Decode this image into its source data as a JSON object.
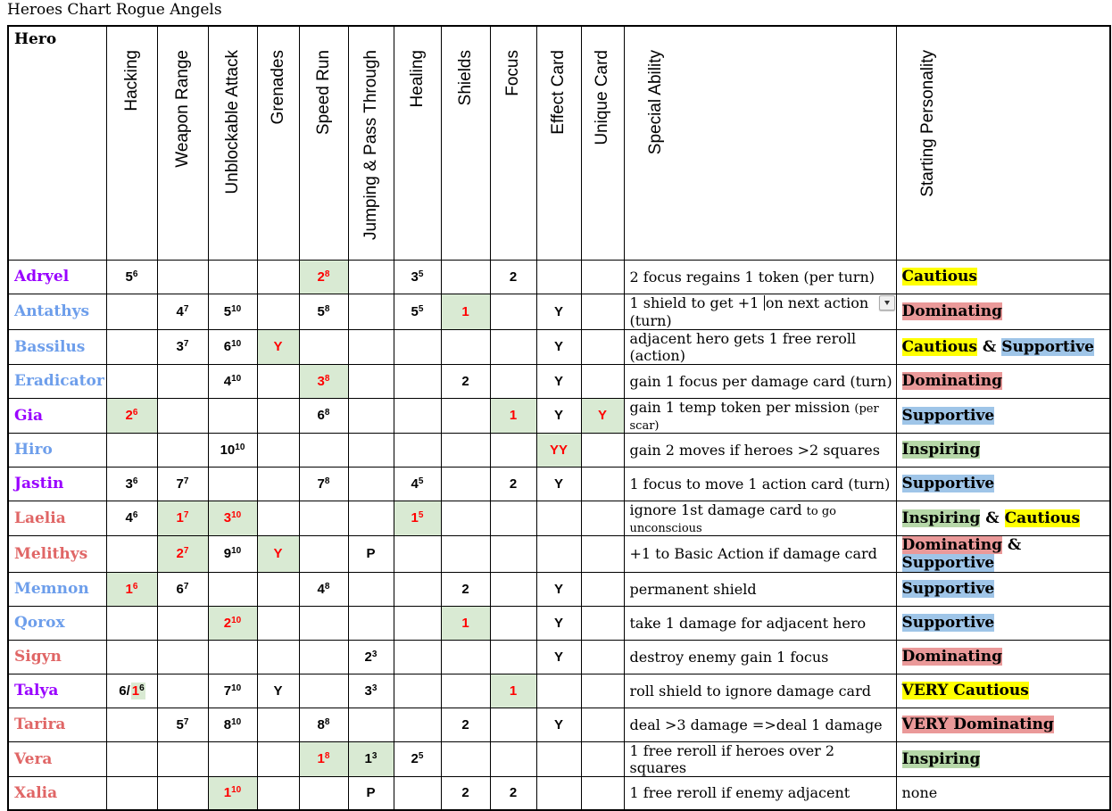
{
  "title": "Heroes Chart Rogue Angels",
  "colors": {
    "cell_highlight": "#d9ead3",
    "value_red": "#ff0000",
    "name_purple": "#9900ff",
    "name_blue": "#6d9eeb",
    "name_salmon": "#e06666",
    "hl_yellow": "#ffff00",
    "hl_pink": "#ea9999",
    "hl_blue": "#9fc5e8",
    "hl_green": "#b6d7a8"
  },
  "table": {
    "hero_header": "Hero",
    "stat_columns": [
      {
        "key": "hacking",
        "label": "Hacking"
      },
      {
        "key": "weapon-range",
        "label": "Weapon Range"
      },
      {
        "key": "unblockable-attack",
        "label": "Unblockable Attack"
      },
      {
        "key": "grenades",
        "label": "Grenades"
      },
      {
        "key": "speed-run",
        "label": "Speed Run"
      },
      {
        "key": "jumping-pass-through",
        "label": "Jumping & Pass Through"
      },
      {
        "key": "healing",
        "label": "Healing"
      },
      {
        "key": "shields",
        "label": "Shields"
      },
      {
        "key": "focus",
        "label": "Focus"
      },
      {
        "key": "effect-card",
        "label": "Effect Card"
      },
      {
        "key": "unique-card",
        "label": "Unique Card"
      }
    ],
    "ability_header": "Special Ability",
    "personality_header": "Starting Personality",
    "rows": [
      {
        "name": "Adryel",
        "color": "purple",
        "stats": {
          "hacking": {
            "segs": [
              {
                "v": "5",
                "sup": "6"
              }
            ]
          },
          "speed-run": {
            "bg": true,
            "segs": [
              {
                "v": "2",
                "sup": "8",
                "red": true
              }
            ]
          },
          "healing": {
            "segs": [
              {
                "v": "3",
                "sup": "5"
              }
            ]
          },
          "focus": {
            "segs": [
              {
                "v": "2"
              }
            ]
          }
        },
        "ability": [
          {
            "t": "2 focus regains 1 token (per turn)"
          }
        ],
        "personality": [
          {
            "t": "Cautious",
            "h": "yellow"
          }
        ]
      },
      {
        "name": "Antathys",
        "color": "blue",
        "stats": {
          "weapon-range": {
            "segs": [
              {
                "v": "4",
                "sup": "7"
              }
            ]
          },
          "unblockable-attack": {
            "segs": [
              {
                "v": "5",
                "sup": "10"
              }
            ]
          },
          "speed-run": {
            "segs": [
              {
                "v": "5",
                "sup": "8"
              }
            ]
          },
          "healing": {
            "segs": [
              {
                "v": "5",
                "sup": "5"
              }
            ]
          },
          "shields": {
            "bg": true,
            "segs": [
              {
                "v": "1",
                "red": true
              }
            ]
          },
          "effect-card": {
            "segs": [
              {
                "v": "Y"
              }
            ]
          }
        },
        "ability": [
          {
            "t": "1 shield to get +1 "
          },
          {
            "caret": true
          },
          {
            "t": "on next action (turn)"
          }
        ],
        "dropdown": true,
        "personality": [
          {
            "t": "Dominating",
            "h": "pink"
          }
        ]
      },
      {
        "name": "Bassilus",
        "color": "blue",
        "stats": {
          "weapon-range": {
            "segs": [
              {
                "v": "3",
                "sup": "7"
              }
            ]
          },
          "unblockable-attack": {
            "segs": [
              {
                "v": "6",
                "sup": "10"
              }
            ]
          },
          "grenades": {
            "bg": true,
            "segs": [
              {
                "v": "Y",
                "red": true
              }
            ]
          },
          "effect-card": {
            "segs": [
              {
                "v": "Y"
              }
            ]
          }
        },
        "ability": [
          {
            "t": "adjacent hero gets 1 free reroll (action)"
          }
        ],
        "personality": [
          {
            "t": "Cautious",
            "h": "yellow"
          },
          {
            "t": " & "
          },
          {
            "t": "Supportive",
            "h": "blue"
          }
        ]
      },
      {
        "name": "Eradicator",
        "color": "blue",
        "stats": {
          "unblockable-attack": {
            "segs": [
              {
                "v": "4",
                "sup": "10"
              }
            ]
          },
          "speed-run": {
            "bg": true,
            "segs": [
              {
                "v": "3",
                "sup": "8",
                "red": true
              }
            ]
          },
          "shields": {
            "segs": [
              {
                "v": "2"
              }
            ]
          },
          "effect-card": {
            "segs": [
              {
                "v": "Y"
              }
            ]
          }
        },
        "ability": [
          {
            "t": "gain 1 focus per damage card (turn)"
          }
        ],
        "personality": [
          {
            "t": "Dominating",
            "h": "pink"
          }
        ]
      },
      {
        "name": "Gia",
        "color": "purple",
        "stats": {
          "hacking": {
            "bg": true,
            "segs": [
              {
                "v": "2",
                "sup": "6",
                "red": true
              }
            ]
          },
          "speed-run": {
            "segs": [
              {
                "v": "6",
                "sup": "8"
              }
            ]
          },
          "focus": {
            "bg": true,
            "segs": [
              {
                "v": "1",
                "red": true
              }
            ]
          },
          "effect-card": {
            "segs": [
              {
                "v": "Y"
              }
            ]
          },
          "unique-card": {
            "bg": true,
            "segs": [
              {
                "v": "Y",
                "red": true
              }
            ]
          }
        },
        "ability": [
          {
            "t": "gain 1 temp token per mission "
          },
          {
            "t": "(per scar)",
            "small": true
          }
        ],
        "personality": [
          {
            "t": "Supportive",
            "h": "blue"
          }
        ]
      },
      {
        "name": "Hiro",
        "color": "blue",
        "stats": {
          "unblockable-attack": {
            "segs": [
              {
                "v": "10",
                "sup": "10"
              }
            ]
          },
          "effect-card": {
            "bg": true,
            "segs": [
              {
                "v": "YY",
                "red": true
              }
            ]
          }
        },
        "ability": [
          {
            "t": "gain 2 moves if heroes >2 squares"
          }
        ],
        "personality": [
          {
            "t": "Inspiring",
            "h": "green"
          }
        ]
      },
      {
        "name": "Jastin",
        "color": "purple",
        "stats": {
          "hacking": {
            "segs": [
              {
                "v": "3",
                "sup": "6"
              }
            ]
          },
          "weapon-range": {
            "segs": [
              {
                "v": "7",
                "sup": "7"
              }
            ]
          },
          "speed-run": {
            "segs": [
              {
                "v": "7",
                "sup": "8"
              }
            ]
          },
          "healing": {
            "segs": [
              {
                "v": "4",
                "sup": "5"
              }
            ]
          },
          "focus": {
            "segs": [
              {
                "v": "2"
              }
            ]
          },
          "effect-card": {
            "segs": [
              {
                "v": "Y"
              }
            ]
          }
        },
        "ability": [
          {
            "t": "1 focus to move 1 action card (turn)"
          }
        ],
        "personality": [
          {
            "t": "Supportive",
            "h": "blue"
          }
        ]
      },
      {
        "name": "Laelia",
        "color": "salmon",
        "stats": {
          "hacking": {
            "segs": [
              {
                "v": "4",
                "sup": "6"
              }
            ]
          },
          "weapon-range": {
            "bg": true,
            "segs": [
              {
                "v": "1",
                "sup": "7",
                "red": true
              }
            ]
          },
          "unblockable-attack": {
            "bg": true,
            "segs": [
              {
                "v": "3",
                "sup": "10",
                "red": true
              }
            ]
          },
          "healing": {
            "bg": true,
            "segs": [
              {
                "v": "1",
                "sup": "5",
                "red": true
              }
            ]
          }
        },
        "ability": [
          {
            "t": "ignore 1st damage card "
          },
          {
            "t": "to go unconscious",
            "small": true
          }
        ],
        "personality": [
          {
            "t": "Inspiring",
            "h": "green"
          },
          {
            "t": " & "
          },
          {
            "t": "Cautious",
            "h": "yellow"
          }
        ]
      },
      {
        "name": "Melithys",
        "color": "salmon",
        "stats": {
          "weapon-range": {
            "bg": true,
            "segs": [
              {
                "v": "2",
                "sup": "7",
                "red": true
              }
            ]
          },
          "unblockable-attack": {
            "segs": [
              {
                "v": "9",
                "sup": "10"
              }
            ]
          },
          "grenades": {
            "bg": true,
            "segs": [
              {
                "v": "Y",
                "red": true
              }
            ]
          },
          "jumping-pass-through": {
            "segs": [
              {
                "v": "P"
              }
            ]
          }
        },
        "ability": [
          {
            "t": "+1 to Basic Action if damage card"
          }
        ],
        "personality": [
          {
            "t": "Dominating",
            "h": "pink"
          },
          {
            "t": " & "
          },
          {
            "t": "Supportive",
            "h": "blue"
          }
        ]
      },
      {
        "name": "Memnon",
        "color": "blue",
        "stats": {
          "hacking": {
            "bg": true,
            "segs": [
              {
                "v": "1",
                "sup": "6",
                "red": true
              }
            ]
          },
          "weapon-range": {
            "segs": [
              {
                "v": "6",
                "sup": "7"
              }
            ]
          },
          "speed-run": {
            "segs": [
              {
                "v": "4",
                "sup": "8"
              }
            ]
          },
          "shields": {
            "segs": [
              {
                "v": "2"
              }
            ]
          },
          "effect-card": {
            "segs": [
              {
                "v": "Y"
              }
            ]
          }
        },
        "ability": [
          {
            "t": "permanent shield"
          }
        ],
        "personality": [
          {
            "t": "Supportive",
            "h": "blue"
          }
        ]
      },
      {
        "name": "Qorox",
        "color": "blue",
        "stats": {
          "unblockable-attack": {
            "bg": true,
            "segs": [
              {
                "v": "2",
                "sup": "10",
                "red": true
              }
            ]
          },
          "shields": {
            "bg": true,
            "segs": [
              {
                "v": "1",
                "red": true
              }
            ]
          },
          "effect-card": {
            "segs": [
              {
                "v": "Y"
              }
            ]
          }
        },
        "ability": [
          {
            "t": "take 1 damage for adjacent hero"
          }
        ],
        "personality": [
          {
            "t": "Supportive",
            "h": "blue"
          }
        ]
      },
      {
        "name": "Sigyn",
        "color": "salmon",
        "stats": {
          "jumping-pass-through": {
            "segs": [
              {
                "v": "2",
                "sup": "3"
              }
            ]
          },
          "effect-card": {
            "segs": [
              {
                "v": "Y"
              }
            ]
          }
        },
        "ability": [
          {
            "t": "destroy enemy gain 1 focus"
          }
        ],
        "personality": [
          {
            "t": "Dominating",
            "h": "pink"
          }
        ]
      },
      {
        "name": "Talya",
        "color": "purple",
        "stats": {
          "hacking": {
            "segs": [
              {
                "v": "6/"
              },
              {
                "v": "1",
                "sup": "6",
                "red": true,
                "hl": true,
                "sup_red": false
              }
            ]
          },
          "unblockable-attack": {
            "segs": [
              {
                "v": "7",
                "sup": "10"
              }
            ]
          },
          "grenades": {
            "segs": [
              {
                "v": "Y"
              }
            ]
          },
          "jumping-pass-through": {
            "segs": [
              {
                "v": "3",
                "sup": "3"
              }
            ]
          },
          "focus": {
            "bg": true,
            "segs": [
              {
                "v": "1",
                "red": true
              }
            ]
          }
        },
        "ability": [
          {
            "t": "roll shield to ignore damage card"
          }
        ],
        "personality": [
          {
            "t": "VERY Cautious",
            "h": "yellow"
          }
        ]
      },
      {
        "name": "Tarira",
        "color": "salmon",
        "stats": {
          "weapon-range": {
            "segs": [
              {
                "v": "5",
                "sup": "7"
              }
            ]
          },
          "unblockable-attack": {
            "segs": [
              {
                "v": "8",
                "sup": "10"
              }
            ]
          },
          "speed-run": {
            "segs": [
              {
                "v": "8",
                "sup": "8"
              }
            ]
          },
          "shields": {
            "segs": [
              {
                "v": "2"
              }
            ]
          },
          "effect-card": {
            "segs": [
              {
                "v": "Y"
              }
            ]
          }
        },
        "ability": [
          {
            "t": "deal >3 damage =>deal 1 damage"
          }
        ],
        "personality": [
          {
            "t": "VERY Dominating",
            "h": "pink"
          }
        ]
      },
      {
        "name": "Vera",
        "color": "salmon",
        "stats": {
          "speed-run": {
            "bg": true,
            "segs": [
              {
                "v": "1",
                "sup": "8",
                "red": true
              }
            ]
          },
          "jumping-pass-through": {
            "bg": true,
            "segs": [
              {
                "v": "1",
                "sup": "3"
              }
            ]
          },
          "healing": {
            "segs": [
              {
                "v": "2",
                "sup": "5"
              }
            ]
          }
        },
        "ability": [
          {
            "t": "1 free reroll if heroes over 2 squares"
          }
        ],
        "personality": [
          {
            "t": "Inspiring",
            "h": "green"
          }
        ]
      },
      {
        "name": "Xalia",
        "color": "salmon",
        "stats": {
          "unblockable-attack": {
            "bg": true,
            "segs": [
              {
                "v": "1",
                "sup": "10",
                "red": true
              }
            ]
          },
          "jumping-pass-through": {
            "segs": [
              {
                "v": "P"
              }
            ]
          },
          "shields": {
            "segs": [
              {
                "v": "2"
              }
            ]
          },
          "focus": {
            "segs": [
              {
                "v": "2"
              }
            ]
          }
        },
        "ability": [
          {
            "t": "1 free reroll if enemy adjacent"
          }
        ],
        "personality": [
          {
            "t": "none",
            "plain": true
          }
        ]
      }
    ]
  }
}
